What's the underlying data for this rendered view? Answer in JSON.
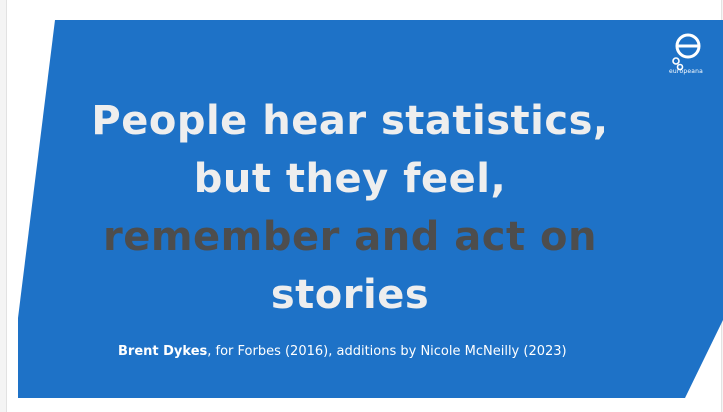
{
  "slide": {
    "headline_line1": "People hear statistics,",
    "headline_line2": "but they feel,",
    "headline_line3": "remember and act on",
    "headline_line4": "stories",
    "caption_author": "Brent Dykes",
    "caption_rest": ", for Forbes (2016), additions by Nicole McNeilly (2023)"
  },
  "logo": {
    "word": "europeana"
  },
  "colors": {
    "slide_blue": "#1e72c7",
    "headline_light": "#eeeeee",
    "headline_dark": "#4d4d4d",
    "background": "#ffffff"
  }
}
